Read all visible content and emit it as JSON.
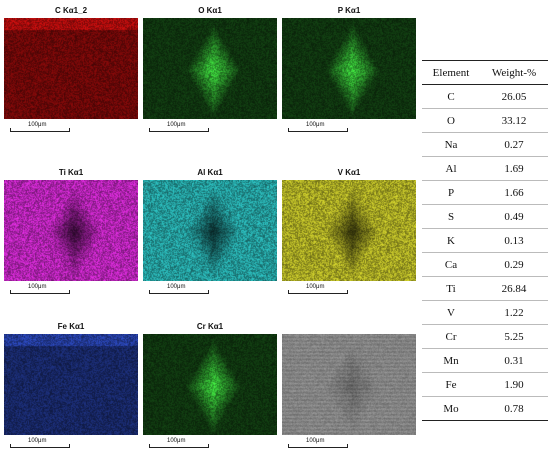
{
  "panels": [
    {
      "title": "C Kα1_2",
      "scale": "100μm",
      "color": "#e01010",
      "bg": "#5a0000",
      "contrast": "low"
    },
    {
      "title": "O Kα1",
      "scale": "100μm",
      "color": "#44ee44",
      "bg": "#083808",
      "contrast": "high"
    },
    {
      "title": "P Kα1",
      "scale": "100μm",
      "color": "#44ee44",
      "bg": "#0a3a0a",
      "contrast": "high"
    },
    {
      "title": "Ti Kα1",
      "scale": "100μm",
      "color": "#f030f0",
      "bg": "#6a106a",
      "contrast": "dark"
    },
    {
      "title": "Al Kα1",
      "scale": "100μm",
      "color": "#30d0d0",
      "bg": "#0a4848",
      "contrast": "dark"
    },
    {
      "title": "V Kα1",
      "scale": "100μm",
      "color": "#e0e030",
      "bg": "#5a5a0a",
      "contrast": "dark"
    },
    {
      "title": "Fe Kα1",
      "scale": "100μm",
      "color": "#3050d0",
      "bg": "#0a1030",
      "contrast": "low"
    },
    {
      "title": "Cr Kα1",
      "scale": "100μm",
      "color": "#44ee44",
      "bg": "#083808",
      "contrast": "high"
    },
    {
      "title": "",
      "scale": "100μm",
      "color": "#d0d0d0",
      "bg": "#707070",
      "contrast": "sem"
    }
  ],
  "table": {
    "header": {
      "element": "Element",
      "weight": "Weight-%"
    },
    "rows": [
      {
        "element": "C",
        "weight": "26.05"
      },
      {
        "element": "O",
        "weight": "33.12"
      },
      {
        "element": "Na",
        "weight": "0.27"
      },
      {
        "element": "Al",
        "weight": "1.69"
      },
      {
        "element": "P",
        "weight": "1.66"
      },
      {
        "element": "S",
        "weight": "0.49"
      },
      {
        "element": "K",
        "weight": "0.13"
      },
      {
        "element": "Ca",
        "weight": "0.29"
      },
      {
        "element": "Ti",
        "weight": "26.84"
      },
      {
        "element": "V",
        "weight": "1.22"
      },
      {
        "element": "Cr",
        "weight": "5.25"
      },
      {
        "element": "Mn",
        "weight": "0.31"
      },
      {
        "element": "Fe",
        "weight": "1.90"
      },
      {
        "element": "Mo",
        "weight": "0.78"
      }
    ]
  }
}
